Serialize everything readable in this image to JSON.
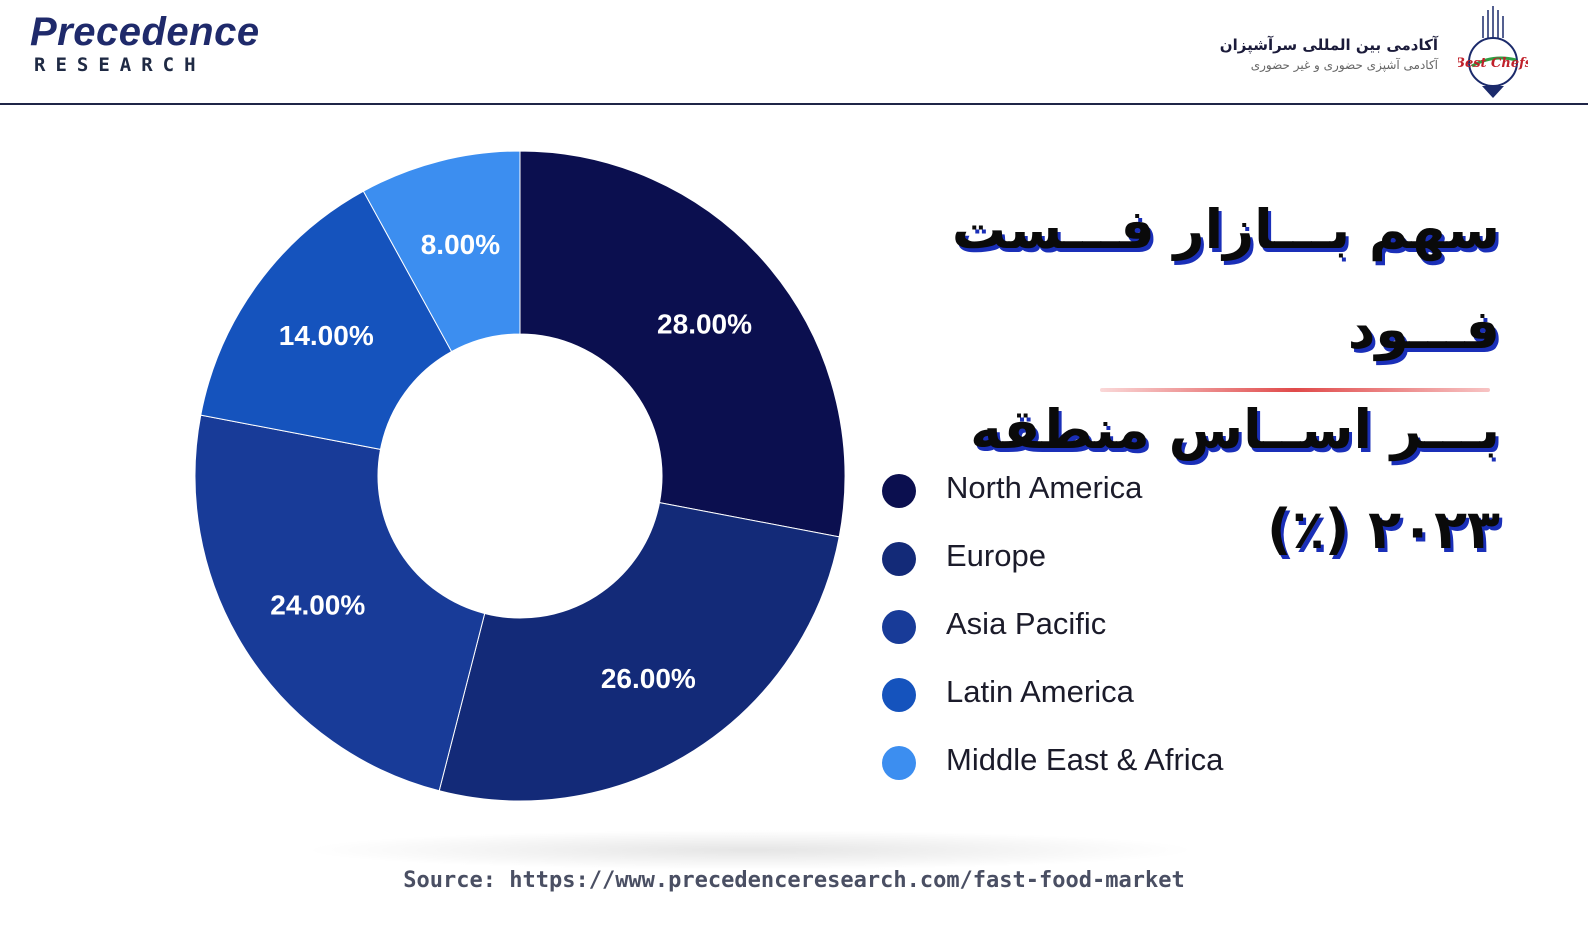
{
  "header": {
    "brand_name": "Precedence",
    "brand_sub": "RESEARCH",
    "academy_name": "آکادمی بین المللی سرآشپزان",
    "academy_tagline": "آکادمی آشپزی حضوری و غیر حضوری",
    "academy_logo_text": "Best Chefs"
  },
  "title": {
    "line1": "سهم بـــازار فـــست فـــود",
    "line2": "بـــر اســاس منطقه ۲۰۲۳ (٪)"
  },
  "source": "Source: https://www.precedenceresearch.com/fast-food-market",
  "chart_data": {
    "type": "pie",
    "donut": true,
    "categories": [
      "North America",
      "Europe",
      "Asia Pacific",
      "Latin America",
      "Middle East & Africa"
    ],
    "values": [
      28.0,
      26.0,
      24.0,
      14.0,
      8.0
    ],
    "value_labels": [
      "28.00%",
      "26.00%",
      "24.00%",
      "14.00%",
      "8.00%"
    ],
    "colors": [
      "#0b0f4f",
      "#132a78",
      "#183b98",
      "#1553bd",
      "#3c8ef0"
    ],
    "legend_placement": "right"
  }
}
